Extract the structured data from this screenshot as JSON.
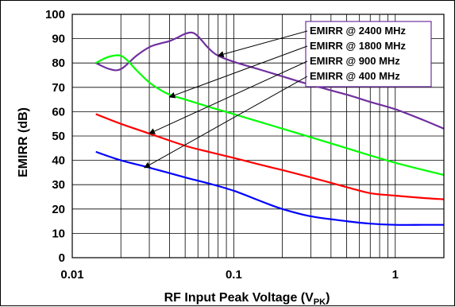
{
  "chart_data": {
    "type": "line",
    "title": "",
    "xlabel": "RF Input Peak Voltage (V",
    "xlabel_sub": "PK",
    "xlabel_close": ")",
    "ylabel": "EMIRR (dB)",
    "x_scale": "log",
    "xlim": [
      0.01,
      2
    ],
    "ylim": [
      0,
      100
    ],
    "x_ticks": [
      0.01,
      0.1,
      1
    ],
    "x_tick_labels": [
      "0.01",
      "0.1",
      "1"
    ],
    "y_ticks": [
      0,
      10,
      20,
      30,
      40,
      50,
      60,
      70,
      80,
      90,
      100
    ],
    "y_tick_labels": [
      "0",
      "10",
      "20",
      "30",
      "40",
      "50",
      "60",
      "70",
      "80",
      "90",
      "100"
    ],
    "grid": true,
    "legend_position": "top-right",
    "series": [
      {
        "name": "EMIRR @ 2400 MHz",
        "color": "#7030a0",
        "x": [
          0.014,
          0.017,
          0.02,
          0.025,
          0.03,
          0.035,
          0.04,
          0.045,
          0.05,
          0.055,
          0.06,
          0.07,
          0.08,
          0.1,
          0.15,
          0.2,
          0.3,
          0.5,
          0.7,
          1,
          1.5,
          2
        ],
        "y": [
          80,
          77.5,
          77.5,
          83,
          86.5,
          88,
          89,
          90.5,
          92,
          92.5,
          91,
          86,
          83,
          80.5,
          77,
          74.5,
          71,
          67,
          64,
          61,
          56.5,
          53
        ]
      },
      {
        "name": "EMIRR @ 1800 MHz",
        "color": "#00ff00",
        "x": [
          0.014,
          0.016,
          0.018,
          0.02,
          0.022,
          0.025,
          0.03,
          0.035,
          0.04,
          0.05,
          0.07,
          0.1,
          0.15,
          0.2,
          0.3,
          0.5,
          0.7,
          1,
          1.5,
          2
        ],
        "y": [
          80,
          82,
          83,
          83,
          81,
          77,
          72,
          69,
          67,
          65,
          62,
          59,
          55.5,
          53,
          49.5,
          45,
          42,
          39,
          36,
          34
        ]
      },
      {
        "name": "EMIRR @ 900 MHz",
        "color": "#ff0000",
        "x": [
          0.014,
          0.02,
          0.03,
          0.05,
          0.07,
          0.1,
          0.15,
          0.2,
          0.3,
          0.5,
          0.7,
          1,
          1.5,
          2
        ],
        "y": [
          59,
          55,
          51,
          46,
          43.5,
          41,
          38,
          36,
          33,
          29,
          26.5,
          25.5,
          24.5,
          24
        ]
      },
      {
        "name": "EMIRR @ 400 MHz",
        "color": "#0000ff",
        "x": [
          0.014,
          0.02,
          0.03,
          0.05,
          0.07,
          0.1,
          0.15,
          0.2,
          0.3,
          0.5,
          0.7,
          1,
          1.5,
          2
        ],
        "y": [
          43.5,
          40,
          37,
          33,
          30.5,
          27.5,
          23,
          20,
          17,
          15,
          14,
          13.5,
          13.5,
          13.5
        ]
      }
    ]
  }
}
